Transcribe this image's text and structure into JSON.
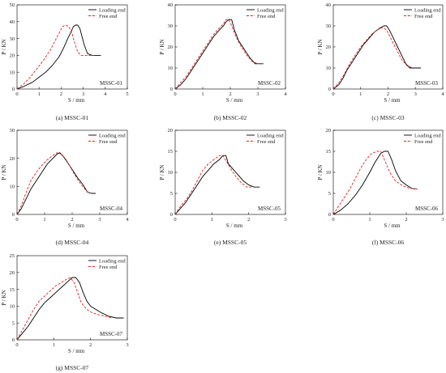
{
  "colors": {
    "loading": "#000000",
    "free": "#e0201b",
    "axis": "#000000"
  },
  "chart_data": [
    {
      "type": "line",
      "caption": "(a) MSSC-01",
      "panel_label": "MSSC-01",
      "xlabel": "S / mm",
      "ylabel": "P / KN",
      "xlim": [
        0,
        5
      ],
      "ylim": [
        0,
        50
      ],
      "xticks": [
        "0",
        "1",
        "2",
        "3",
        "4",
        "5"
      ],
      "yticks": [
        "0",
        "10",
        "20",
        "30",
        "40",
        "50"
      ],
      "legend": "top-right",
      "series": [
        {
          "name": "Loading end",
          "style": "solid",
          "x": [
            0,
            0.3,
            0.7,
            1.0,
            1.3,
            1.6,
            1.9,
            2.1,
            2.3,
            2.45,
            2.55,
            2.65,
            2.75,
            2.85,
            2.95,
            3.05,
            3.2,
            3.4,
            3.6,
            3.8
          ],
          "y": [
            0,
            1.5,
            4,
            7,
            10,
            14,
            19,
            24,
            30,
            34,
            37,
            38,
            38,
            36,
            31,
            26,
            21,
            20,
            20,
            20
          ]
        },
        {
          "name": "Free end",
          "style": "dashed",
          "x": [
            0,
            0.3,
            0.6,
            0.9,
            1.2,
            1.5,
            1.7,
            1.9,
            2.05,
            2.2,
            2.35,
            2.5,
            2.6,
            2.75,
            2.9,
            3.1,
            3.3,
            3.5
          ],
          "y": [
            0,
            3,
            7,
            12,
            17,
            23,
            28,
            33,
            37,
            38,
            37,
            33,
            28,
            22,
            20,
            20,
            20,
            20
          ]
        }
      ]
    },
    {
      "type": "line",
      "caption": "(b) MSSC-02",
      "panel_label": "MSSC-02",
      "xlabel": "S / mm",
      "ylabel": "P / KN",
      "xlim": [
        0,
        4
      ],
      "ylim": [
        0,
        40
      ],
      "xticks": [
        "0",
        "1",
        "2",
        "3",
        "4"
      ],
      "yticks": [
        "0",
        "10",
        "20",
        "30",
        "40"
      ],
      "legend": "top-right",
      "series": [
        {
          "name": "Loading end",
          "style": "solid",
          "x": [
            0,
            0.2,
            0.4,
            0.6,
            0.8,
            1.0,
            1.2,
            1.4,
            1.6,
            1.75,
            1.85,
            1.95,
            2.05,
            2.15,
            2.3,
            2.5,
            2.7,
            2.9,
            3.05,
            3.2
          ],
          "y": [
            0,
            2,
            5,
            9,
            13,
            17,
            21,
            25,
            28,
            30,
            32,
            33,
            33,
            28,
            23,
            19,
            15,
            12,
            12,
            12
          ]
        },
        {
          "name": "Free end",
          "style": "dashed",
          "x": [
            0,
            0.2,
            0.4,
            0.6,
            0.8,
            1.0,
            1.2,
            1.4,
            1.6,
            1.75,
            1.85,
            1.95,
            2.05,
            2.2,
            2.4,
            2.6,
            2.8,
            3.0
          ],
          "y": [
            0,
            3,
            6,
            10,
            14,
            18,
            22,
            26,
            29,
            31,
            33,
            33,
            30,
            25,
            20,
            16,
            13,
            12
          ]
        }
      ]
    },
    {
      "type": "line",
      "caption": "(c) MSSC-03",
      "panel_label": "MSSC-03",
      "xlabel": "S / mm",
      "ylabel": "P / KN",
      "xlim": [
        0,
        4
      ],
      "ylim": [
        0,
        40
      ],
      "xticks": [
        "0",
        "1",
        "2",
        "3",
        "4"
      ],
      "yticks": [
        "0",
        "10",
        "20",
        "30",
        "40"
      ],
      "legend": "top-right",
      "series": [
        {
          "name": "Loading end",
          "style": "solid",
          "x": [
            0,
            0.2,
            0.35,
            0.5,
            0.7,
            0.9,
            1.1,
            1.3,
            1.5,
            1.7,
            1.85,
            1.95,
            2.05,
            2.2,
            2.35,
            2.5,
            2.65,
            2.8,
            3.0,
            3.2
          ],
          "y": [
            0,
            2,
            5,
            9,
            13,
            17,
            21,
            24,
            27,
            29,
            30,
            30,
            28,
            24,
            20,
            16,
            12,
            10,
            10,
            10
          ]
        },
        {
          "name": "Free end",
          "style": "dashed",
          "x": [
            0,
            0.2,
            0.4,
            0.6,
            0.8,
            1.0,
            1.2,
            1.4,
            1.6,
            1.75,
            1.85,
            1.95,
            2.1,
            2.3,
            2.5,
            2.7,
            2.9
          ],
          "y": [
            0,
            3,
            7,
            12,
            16,
            20,
            23,
            26,
            28,
            29,
            29,
            28,
            24,
            19,
            14,
            11,
            10
          ]
        }
      ]
    },
    {
      "type": "line",
      "caption": "(d) MSSC-04",
      "panel_label": "MSSC-04",
      "xlabel": "S / mm",
      "ylabel": "P / KN",
      "xlim": [
        0,
        4
      ],
      "ylim": [
        0,
        30
      ],
      "xticks": [
        "0",
        "1",
        "2",
        "3",
        "4"
      ],
      "yticks": [
        "0",
        "10",
        "20",
        "30"
      ],
      "legend": "top-right",
      "series": [
        {
          "name": "Loading end",
          "style": "solid",
          "x": [
            0,
            0.15,
            0.3,
            0.5,
            0.7,
            0.9,
            1.1,
            1.3,
            1.45,
            1.55,
            1.65,
            1.8,
            2.0,
            2.2,
            2.4,
            2.55,
            2.7,
            2.85
          ],
          "y": [
            0,
            2,
            5,
            9,
            12,
            15,
            18,
            20,
            21.5,
            22,
            21,
            19,
            16,
            13,
            10.5,
            8,
            7.5,
            7.5
          ]
        },
        {
          "name": "Free end",
          "style": "dashed",
          "x": [
            0,
            0.15,
            0.3,
            0.5,
            0.7,
            0.9,
            1.1,
            1.3,
            1.45,
            1.6,
            1.75,
            1.9,
            2.1,
            2.3,
            2.5,
            2.65
          ],
          "y": [
            0,
            3,
            7,
            12,
            15,
            17.5,
            19.5,
            21,
            22,
            21.5,
            20,
            17.5,
            14,
            11,
            8.5,
            7.5
          ]
        }
      ]
    },
    {
      "type": "line",
      "caption": "(e) MSSC-05",
      "panel_label": "MSSC-05",
      "xlabel": "S / mm",
      "ylabel": "P / KN",
      "xlim": [
        0,
        3
      ],
      "ylim": [
        0,
        20
      ],
      "xticks": [
        "0",
        "1",
        "2",
        "3"
      ],
      "yticks": [
        "0",
        "5",
        "10",
        "15",
        "20"
      ],
      "legend": "top-right",
      "series": [
        {
          "name": "Loading end",
          "style": "solid",
          "x": [
            0,
            0.15,
            0.3,
            0.45,
            0.6,
            0.75,
            0.9,
            1.05,
            1.2,
            1.3,
            1.38,
            1.45,
            1.55,
            1.7,
            1.85,
            2.0,
            2.15,
            2.3
          ],
          "y": [
            0,
            1.5,
            3,
            5,
            7,
            9,
            10.5,
            12,
            13,
            14,
            14,
            12,
            11,
            9.5,
            8,
            7,
            6.5,
            6.5
          ]
        },
        {
          "name": "Free end",
          "style": "dashed",
          "x": [
            0,
            0.15,
            0.3,
            0.45,
            0.6,
            0.75,
            0.9,
            1.05,
            1.2,
            1.3,
            1.4,
            1.5,
            1.65,
            1.8,
            1.95,
            2.1
          ],
          "y": [
            0,
            2,
            3.5,
            5.5,
            8,
            10.5,
            12,
            13,
            14,
            14,
            12.5,
            11,
            9,
            7.5,
            6.5,
            6.5
          ]
        }
      ]
    },
    {
      "type": "line",
      "caption": "(f) MSSC-06",
      "panel_label": "MSSC-06",
      "xlabel": "S / mm",
      "ylabel": "P / KN",
      "xlim": [
        0,
        3
      ],
      "ylim": [
        0,
        20
      ],
      "xticks": [
        "0",
        "1",
        "2",
        "3"
      ],
      "yticks": [
        "0",
        "5",
        "10",
        "15",
        "20"
      ],
      "legend": "top-right",
      "series": [
        {
          "name": "Loading end",
          "style": "solid",
          "x": [
            0,
            0.2,
            0.4,
            0.6,
            0.8,
            1.0,
            1.15,
            1.3,
            1.4,
            1.5,
            1.6,
            1.7,
            1.85,
            2.0,
            2.15,
            2.3
          ],
          "y": [
            0,
            1,
            2.5,
            4.5,
            7,
            10,
            12.5,
            14.5,
            15,
            15,
            13,
            10.5,
            8,
            7,
            6.2,
            6
          ]
        },
        {
          "name": "Free end",
          "style": "dashed",
          "x": [
            0,
            0.15,
            0.3,
            0.45,
            0.6,
            0.75,
            0.9,
            1.05,
            1.2,
            1.3,
            1.4,
            1.55,
            1.7,
            1.9,
            2.1,
            2.3
          ],
          "y": [
            0,
            2,
            4,
            6,
            8.5,
            11,
            13,
            14.5,
            15,
            15,
            13,
            10,
            8,
            6.8,
            6.2,
            6
          ]
        }
      ]
    },
    {
      "type": "line",
      "caption": "(g) MSSC-07",
      "panel_label": "MSSC-07",
      "xlabel": "S / mm",
      "ylabel": "P / KN",
      "xlim": [
        0,
        3
      ],
      "ylim": [
        0,
        25
      ],
      "xticks": [
        "0",
        "1",
        "2",
        "3"
      ],
      "yticks": [
        "0",
        "5",
        "10",
        "15",
        "20",
        "25"
      ],
      "legend": "top-right",
      "series": [
        {
          "name": "Loading end",
          "style": "solid",
          "x": [
            0,
            0.15,
            0.3,
            0.45,
            0.6,
            0.75,
            0.9,
            1.05,
            1.2,
            1.35,
            1.5,
            1.6,
            1.7,
            1.8,
            1.9,
            2.0,
            2.15,
            2.3,
            2.5,
            2.7,
            2.9
          ],
          "y": [
            0,
            2,
            4,
            6.5,
            9,
            11,
            12.5,
            14,
            15.5,
            17,
            18.5,
            18.5,
            17,
            14,
            11.5,
            10,
            9,
            8,
            7,
            6.5,
            6.5
          ]
        },
        {
          "name": "Free end",
          "style": "dashed",
          "x": [
            0,
            0.15,
            0.3,
            0.45,
            0.6,
            0.75,
            0.9,
            1.05,
            1.2,
            1.35,
            1.45,
            1.55,
            1.65,
            1.75,
            1.9,
            2.05,
            2.2,
            2.4,
            2.6
          ],
          "y": [
            0,
            3,
            6,
            9,
            11.5,
            13,
            14.5,
            16,
            17,
            18,
            18.5,
            17,
            14,
            11,
            9,
            8,
            7.5,
            7,
            6.5
          ]
        }
      ]
    }
  ]
}
